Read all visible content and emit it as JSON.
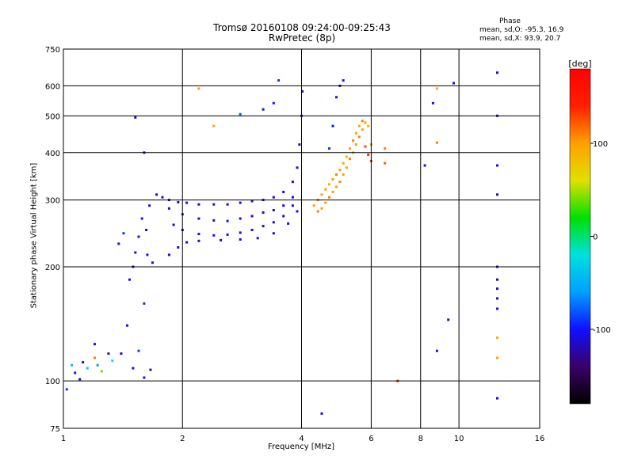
{
  "header": {
    "title_line1": "Tromsø 20160108 09:24:00-09:25:43",
    "title_line2": "RwPretec (8p)",
    "phase_heading": "Phase",
    "phase_o_stats": "mean, sd,O:  -95.3, 16.9",
    "phase_x_stats": "mean, sd,X:  93.9, 20.7"
  },
  "chart_data": {
    "type": "scatter",
    "title": "Tromsø 20160108 09:24:00-09:25:43",
    "subtitle": "RwPretec (8p)",
    "xlabel": "Frequency [MHz]",
    "ylabel": "Stationary phase Virtual Height [km]",
    "x_scale": "log",
    "y_scale": "log",
    "xlim": [
      1,
      16
    ],
    "ylim": [
      75,
      750
    ],
    "x_ticks": [
      1,
      2,
      4,
      6,
      8,
      10,
      16
    ],
    "x_tick_labels": [
      "1",
      "2",
      "4",
      "6",
      "8",
      "10",
      "16"
    ],
    "y_ticks": [
      75,
      100,
      200,
      300,
      400,
      500,
      600,
      750
    ],
    "y_tick_labels": [
      "75",
      "100",
      "200",
      "300",
      "400",
      "500",
      "600",
      "750"
    ],
    "grid": true,
    "colorbar": {
      "label": "[deg]",
      "range": [
        -180,
        180
      ],
      "ticks": [
        100,
        0,
        -100
      ],
      "tick_labels": [
        "100",
        "0",
        "-100"
      ],
      "colors": [
        "#000000",
        "#3a0066",
        "#1010ff",
        "#00a0ff",
        "#00e0e0",
        "#00e000",
        "#e0e000",
        "#ffa000",
        "#ff2000",
        "#ff0000"
      ]
    },
    "series": [
      {
        "name": "O",
        "points": [
          [
            1.02,
            95,
            -90
          ],
          [
            1.05,
            110,
            -40
          ],
          [
            1.07,
            105,
            -100
          ],
          [
            1.1,
            101,
            -110
          ],
          [
            1.12,
            112,
            -120
          ],
          [
            1.15,
            108,
            -30
          ],
          [
            1.2,
            125,
            -100
          ],
          [
            1.22,
            110,
            -60
          ],
          [
            1.25,
            106,
            40
          ],
          [
            1.3,
            118,
            -110
          ],
          [
            1.33,
            113,
            -20
          ],
          [
            1.38,
            230,
            -100
          ],
          [
            1.4,
            118,
            -120
          ],
          [
            1.42,
            245,
            -90
          ],
          [
            1.45,
            140,
            -100
          ],
          [
            1.47,
            185,
            -110
          ],
          [
            1.5,
            200,
            -120
          ],
          [
            1.5,
            108,
            -100
          ],
          [
            1.52,
            218,
            -110
          ],
          [
            1.55,
            240,
            -100
          ],
          [
            1.55,
            120,
            -90
          ],
          [
            1.58,
            268,
            -100
          ],
          [
            1.6,
            160,
            -90
          ],
          [
            1.6,
            102,
            -110
          ],
          [
            1.62,
            250,
            -120
          ],
          [
            1.63,
            215,
            -100
          ],
          [
            1.65,
            290,
            -110
          ],
          [
            1.66,
            107,
            -120
          ],
          [
            1.68,
            205,
            -110
          ],
          [
            1.52,
            495,
            -110
          ],
          [
            1.6,
            400,
            -100
          ],
          [
            1.72,
            310,
            -110
          ],
          [
            1.78,
            305,
            -110
          ],
          [
            1.85,
            300,
            -100
          ],
          [
            1.95,
            296,
            -115
          ],
          [
            2.05,
            295,
            -110
          ],
          [
            2.2,
            292,
            -110
          ],
          [
            2.4,
            292,
            -110
          ],
          [
            2.6,
            292,
            -105
          ],
          [
            2.8,
            295,
            -110
          ],
          [
            3.0,
            298,
            -110
          ],
          [
            3.2,
            300,
            -110
          ],
          [
            3.4,
            305,
            -110
          ],
          [
            3.6,
            315,
            -100
          ],
          [
            3.8,
            335,
            -110
          ],
          [
            3.9,
            365,
            -110
          ],
          [
            3.95,
            420,
            -110
          ],
          [
            4.0,
            500,
            -110
          ],
          [
            4.02,
            580,
            -110
          ],
          [
            1.85,
            285,
            -110
          ],
          [
            2.0,
            275,
            -100
          ],
          [
            2.2,
            268,
            -110
          ],
          [
            2.4,
            265,
            -110
          ],
          [
            2.6,
            264,
            -100
          ],
          [
            2.8,
            268,
            -110
          ],
          [
            3.0,
            272,
            -110
          ],
          [
            3.2,
            278,
            -110
          ],
          [
            3.4,
            282,
            -110
          ],
          [
            3.6,
            290,
            -110
          ],
          [
            3.8,
            305,
            -110
          ],
          [
            1.9,
            258,
            -120
          ],
          [
            2.0,
            250,
            -110
          ],
          [
            2.2,
            244,
            -110
          ],
          [
            2.4,
            242,
            -110
          ],
          [
            2.6,
            243,
            -100
          ],
          [
            2.8,
            246,
            -110
          ],
          [
            3.0,
            250,
            -110
          ],
          [
            3.2,
            256,
            -110
          ],
          [
            3.4,
            262,
            -110
          ],
          [
            3.6,
            272,
            -110
          ],
          [
            3.8,
            290,
            -110
          ],
          [
            1.85,
            215,
            -110
          ],
          [
            1.95,
            225,
            -110
          ],
          [
            2.05,
            232,
            -110
          ],
          [
            2.2,
            234,
            -110
          ],
          [
            2.5,
            235,
            -110
          ],
          [
            2.8,
            236,
            -110
          ],
          [
            3.1,
            238,
            -110
          ],
          [
            3.4,
            245,
            -110
          ],
          [
            3.7,
            260,
            -110
          ],
          [
            3.9,
            280,
            -110
          ],
          [
            4.8,
            470,
            -100
          ],
          [
            4.9,
            560,
            -110
          ],
          [
            5.0,
            600,
            -100
          ],
          [
            4.7,
            410,
            -90
          ],
          [
            5.1,
            620,
            -100
          ],
          [
            3.5,
            620,
            -90
          ],
          [
            3.4,
            540,
            -100
          ],
          [
            2.8,
            505,
            -80
          ],
          [
            3.2,
            520,
            -100
          ],
          [
            8.2,
            370,
            -110
          ],
          [
            8.6,
            540,
            -100
          ],
          [
            8.8,
            120,
            -110
          ],
          [
            9.4,
            145,
            -110
          ],
          [
            9.7,
            610,
            -100
          ],
          [
            12.5,
            650,
            -110
          ],
          [
            12.5,
            500,
            -100
          ],
          [
            12.5,
            370,
            -100
          ],
          [
            12.5,
            310,
            -110
          ],
          [
            12.5,
            200,
            -110
          ],
          [
            12.5,
            185,
            -120
          ],
          [
            12.5,
            175,
            -120
          ],
          [
            12.5,
            165,
            -110
          ],
          [
            12.5,
            155,
            -100
          ],
          [
            12.5,
            90,
            -110
          ],
          [
            4.5,
            82,
            -110
          ]
        ]
      },
      {
        "name": "X",
        "points": [
          [
            4.3,
            290,
            100
          ],
          [
            4.4,
            300,
            110
          ],
          [
            4.5,
            310,
            100
          ],
          [
            4.6,
            320,
            100
          ],
          [
            4.7,
            330,
            90
          ],
          [
            4.8,
            340,
            100
          ],
          [
            4.9,
            350,
            110
          ],
          [
            5.0,
            360,
            100
          ],
          [
            5.1,
            375,
            100
          ],
          [
            5.2,
            390,
            90
          ],
          [
            5.3,
            410,
            100
          ],
          [
            5.4,
            430,
            110
          ],
          [
            5.5,
            450,
            100
          ],
          [
            5.6,
            470,
            100
          ],
          [
            5.7,
            485,
            110
          ],
          [
            5.8,
            480,
            100
          ],
          [
            5.9,
            470,
            90
          ],
          [
            6.0,
            420,
            100
          ],
          [
            4.4,
            280,
            110
          ],
          [
            4.5,
            285,
            100
          ],
          [
            4.6,
            295,
            100
          ],
          [
            4.7,
            305,
            110
          ],
          [
            4.8,
            315,
            100
          ],
          [
            4.9,
            325,
            100
          ],
          [
            5.0,
            335,
            110
          ],
          [
            5.1,
            350,
            100
          ],
          [
            5.2,
            365,
            100
          ],
          [
            5.3,
            385,
            110
          ],
          [
            5.4,
            400,
            100
          ],
          [
            5.5,
            420,
            100
          ],
          [
            5.6,
            440,
            110
          ],
          [
            5.7,
            460,
            100
          ],
          [
            5.8,
            415,
            130
          ],
          [
            5.9,
            395,
            140
          ],
          [
            6.0,
            380,
            130
          ],
          [
            6.5,
            375,
            120
          ],
          [
            8.8,
            590,
            90
          ],
          [
            8.8,
            425,
            110
          ],
          [
            12.5,
            130,
            90
          ],
          [
            12.5,
            115,
            100
          ],
          [
            2.2,
            590,
            100
          ],
          [
            1.2,
            115,
            110
          ],
          [
            2.4,
            470,
            100
          ],
          [
            6.5,
            410,
            110
          ],
          [
            7.0,
            100,
            140
          ]
        ]
      }
    ]
  }
}
